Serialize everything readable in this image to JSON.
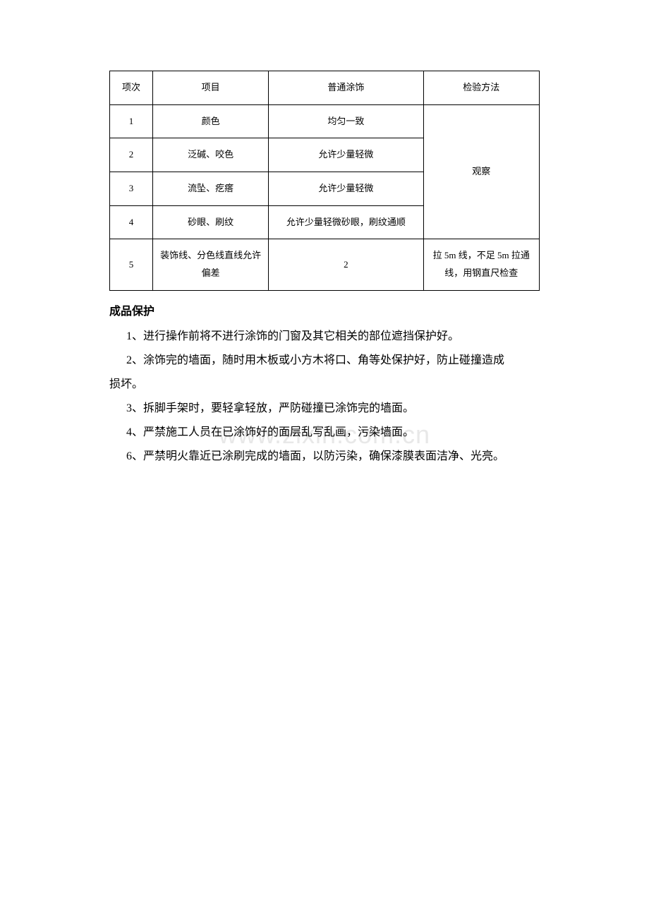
{
  "table": {
    "headers": {
      "col1": "项次",
      "col2": "项目",
      "col3": "普通涂饰",
      "col4": "检验方法"
    },
    "rows": [
      {
        "num": "1",
        "item": "颜色",
        "spec": "均匀一致"
      },
      {
        "num": "2",
        "item": "泛碱、咬色",
        "spec": "允许少量轻微"
      },
      {
        "num": "3",
        "item": "流坠、疙瘩",
        "spec": "允许少量轻微"
      },
      {
        "num": "4",
        "item": "砂眼、刷纹",
        "spec": "允许少量轻微砂眼，刷纹通顺"
      },
      {
        "num": "5",
        "item": "装饰线、分色线直线允许偏差",
        "spec": "2"
      }
    ],
    "method1": "观察",
    "method2": "拉 5m 线，不足 5m 拉通线，用钢直尺检查"
  },
  "section_title": "成品保护",
  "paragraphs": {
    "p1": "1、进行操作前将不进行涂饰的门窗及其它相关的部位遮挡保护好。",
    "p2a": "2、涂饰完的墙面，随时用木板或小方木将口、角等处保护好，防止碰撞造成",
    "p2b": "损坏。",
    "p3": "3、拆脚手架时，要轻拿轻放，严防碰撞已涂饰完的墙面。",
    "p4": "4、严禁施工人员在已涂饰好的面层乱写乱画，污染墙面。",
    "p5": "6、严禁明火靠近已涂刷完成的墙面，以防污染，确保漆膜表面洁净、光亮。"
  },
  "watermark": "www.zixin.com.cn"
}
